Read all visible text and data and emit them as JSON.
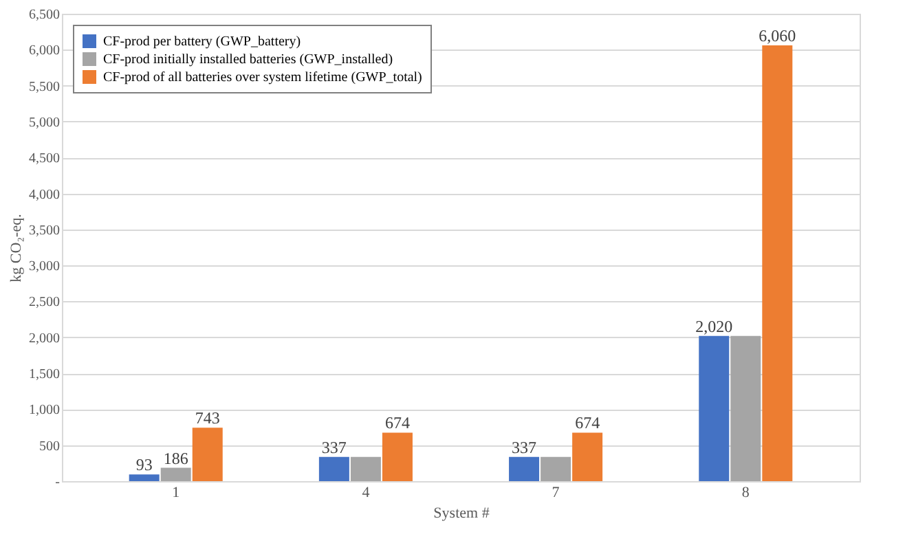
{
  "chart_data": {
    "type": "bar",
    "xlabel": "System #",
    "ylabel": "kg CO₂-eq.",
    "categories": [
      "1",
      "4",
      "7",
      "8"
    ],
    "series": [
      {
        "name": "CF-prod per battery (GWP_battery)",
        "color": "#4472c4",
        "values": [
          93,
          337,
          337,
          2020
        ],
        "value_labels": [
          "93",
          "337",
          "337",
          "2,020"
        ]
      },
      {
        "name": "CF-prod initially installed batteries (GWP_installed)",
        "color": "#a5a5a5",
        "values": [
          186,
          337,
          337,
          2020
        ],
        "value_labels": [
          "186",
          null,
          null,
          null
        ]
      },
      {
        "name": "CF-prod of all batteries over system lifetime (GWP_total)",
        "color": "#ed7d31",
        "values": [
          743,
          674,
          674,
          6060
        ],
        "value_labels": [
          "743",
          "674",
          "674",
          "6,060"
        ]
      }
    ],
    "ylim": [
      0,
      6500
    ],
    "yticks": [
      {
        "value": 0,
        "label": "-"
      },
      {
        "value": 500,
        "label": "500"
      },
      {
        "value": 1000,
        "label": "1,000"
      },
      {
        "value": 1500,
        "label": "1,500"
      },
      {
        "value": 2000,
        "label": "2,000"
      },
      {
        "value": 2500,
        "label": "2,500"
      },
      {
        "value": 3000,
        "label": "3,000"
      },
      {
        "value": 3500,
        "label": "3,500"
      },
      {
        "value": 4000,
        "label": "4,000"
      },
      {
        "value": 4500,
        "label": "4,500"
      },
      {
        "value": 5000,
        "label": "5,000"
      },
      {
        "value": 5500,
        "label": "5,500"
      },
      {
        "value": 6000,
        "label": "6,000"
      },
      {
        "value": 6500,
        "label": "6,500"
      }
    ],
    "grid": "y",
    "legend": "top left"
  }
}
